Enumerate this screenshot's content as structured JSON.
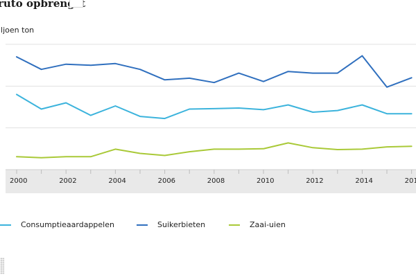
{
  "header": {
    "title": "ruto opbrengst",
    "unit": "iljoen ton"
  },
  "colors": {
    "consumptie": "#3bb3dc",
    "suiker": "#2f6fbe",
    "zaaiuien": "#a9c937",
    "grid": "#e1e1e1",
    "axis_band": "#e9e9e9"
  },
  "chart_data": {
    "type": "line",
    "title": "ruto opbrengst",
    "ylabel": "iljoen ton",
    "x": [
      2000,
      2001,
      2002,
      2003,
      2004,
      2005,
      2006,
      2007,
      2008,
      2009,
      2010,
      2011,
      2012,
      2013,
      2014,
      2015,
      2016
    ],
    "x_tick_labels": [
      "2000",
      "2002",
      "2004",
      "2006",
      "2008",
      "2010",
      "2012",
      "2014",
      "201"
    ],
    "ylim": [
      0,
      6
    ],
    "grid": true,
    "legend_position": "bottom",
    "series": [
      {
        "name": "Consumptieaardappelen",
        "values": [
          3.6,
          2.9,
          3.2,
          2.6,
          3.05,
          2.55,
          2.45,
          2.9,
          2.92,
          2.95,
          2.87,
          3.1,
          2.75,
          2.83,
          3.1,
          2.68,
          2.68
        ]
      },
      {
        "name": "Suikerbieten",
        "values": [
          5.4,
          4.8,
          5.05,
          5.0,
          5.08,
          4.8,
          4.3,
          4.38,
          4.17,
          4.62,
          4.22,
          4.7,
          4.62,
          4.62,
          5.45,
          3.95,
          4.4
        ]
      },
      {
        "name": "Zaai-uien",
        "values": [
          0.62,
          0.57,
          0.62,
          0.62,
          0.98,
          0.78,
          0.68,
          0.86,
          0.98,
          0.98,
          1.0,
          1.28,
          1.05,
          0.96,
          0.98,
          1.09,
          1.12
        ]
      }
    ]
  }
}
